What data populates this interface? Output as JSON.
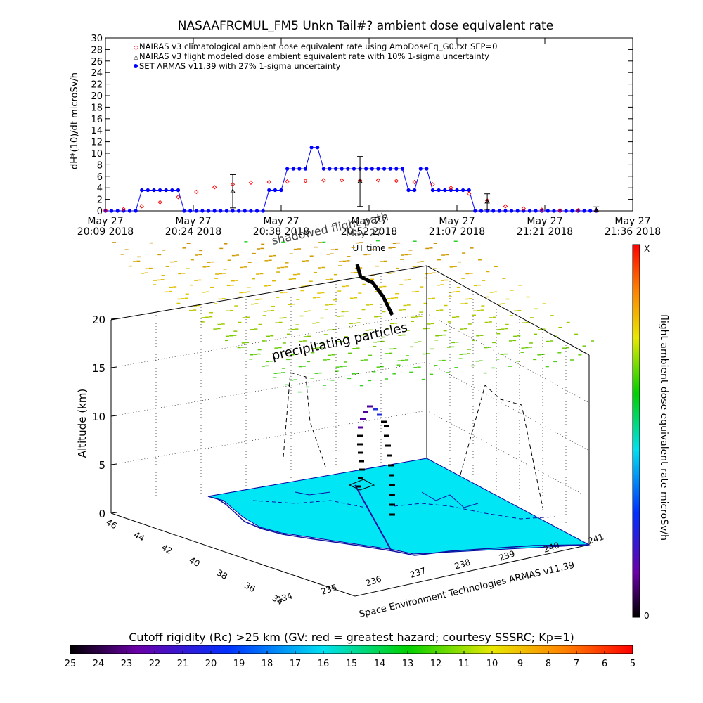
{
  "chart_data": [
    {
      "type": "line",
      "title": "NASAAFRCMUL_FM5 Unkn Tail#? ambient dose equivalent rate",
      "ylabel": "dH*(10)/dt microSv/h",
      "xlabel": "UT time",
      "ylim": [
        0,
        30
      ],
      "yticks": [
        "0",
        "2",
        "4",
        "6",
        "8",
        "10",
        "12",
        "14",
        "16",
        "18",
        "20",
        "22",
        "24",
        "26",
        "28",
        "30"
      ],
      "xticks": [
        {
          "top": "May 27",
          "bottom": "20:09 2018"
        },
        {
          "top": "May 27",
          "bottom": "20:24 2018"
        },
        {
          "top": "May 27",
          "bottom": "20:38 2018"
        },
        {
          "top": "May 27",
          "bottom": "20:52 2018"
        },
        {
          "top": "May 27",
          "bottom": "21:07 2018"
        },
        {
          "top": "May 27",
          "bottom": "21:21 2018"
        },
        {
          "top": "May 27",
          "bottom": "21:36 2018"
        }
      ],
      "legend_position": "top-left",
      "legend": [
        "NAIRAS v3 climatological ambient dose equivalent rate using AmbDoseEq_G0.txt SEP=0",
        "NAIRAS v3 flight modeled dose ambient equivalent rate with 10% 1-sigma uncertainty",
        "SET ARMAS v11.39 with 27% 1-sigma uncertainty"
      ],
      "series": [
        {
          "name": "SET ARMAS v11.39 with 27% 1-sigma uncertainty",
          "color": "#0000ff",
          "x_minutes_after_2009": [
            0,
            1,
            2,
            3,
            4,
            5,
            6,
            7,
            8,
            9,
            10,
            11,
            12,
            13,
            14,
            15,
            16,
            17,
            18,
            19,
            20,
            21,
            22,
            23,
            24,
            25,
            26,
            27,
            28,
            29,
            30,
            31,
            32,
            33,
            34,
            35,
            36,
            37,
            38,
            39,
            40,
            41,
            42,
            43,
            44,
            45,
            46,
            47,
            48,
            49,
            50,
            51,
            52,
            53,
            54,
            55,
            56,
            57,
            58,
            59,
            60,
            61,
            62,
            63,
            64,
            65,
            66,
            67,
            68,
            69,
            70,
            71,
            72,
            73,
            74,
            75,
            76,
            77,
            78,
            79,
            80,
            81
          ],
          "values": [
            0,
            0,
            0,
            0,
            0,
            0,
            3.6,
            3.6,
            3.6,
            3.6,
            3.6,
            3.6,
            3.6,
            0,
            0,
            0,
            0,
            0,
            0,
            0,
            0,
            0,
            0,
            0,
            0,
            0,
            0,
            3.6,
            3.6,
            3.6,
            7.3,
            7.3,
            7.3,
            7.3,
            11,
            11,
            7.3,
            7.3,
            7.3,
            7.3,
            7.3,
            7.3,
            7.3,
            7.3,
            7.3,
            7.3,
            7.3,
            7.3,
            7.3,
            7.3,
            3.6,
            3.6,
            7.3,
            7.3,
            3.6,
            3.6,
            3.6,
            3.6,
            3.6,
            3.6,
            3.6,
            0,
            0,
            0,
            0,
            0,
            0,
            0,
            0,
            0,
            0,
            0,
            0,
            0,
            0,
            0,
            0,
            0,
            0,
            0,
            0,
            0
          ]
        },
        {
          "name": "NAIRAS v3 climatological ambient dose equivalent rate using AmbDoseEq_G0.txt SEP=0",
          "color": "#ff0000",
          "x_minutes_after_2009": [
            0,
            3,
            6,
            9,
            12,
            15,
            18,
            21,
            24,
            27,
            30,
            33,
            36,
            39,
            42,
            45,
            48,
            51,
            54,
            57,
            60,
            63,
            66,
            69,
            72,
            75,
            78,
            81
          ],
          "values": [
            0.1,
            0.3,
            0.8,
            1.5,
            2.4,
            3.3,
            4.1,
            4.6,
            4.9,
            5.0,
            5.1,
            5.2,
            5.3,
            5.3,
            5.3,
            5.3,
            5.2,
            5.0,
            4.6,
            4.0,
            3.0,
            1.8,
            0.8,
            0.4,
            0.2,
            0.1,
            0.1,
            0.1
          ]
        },
        {
          "name": "NAIRAS v3 flight modeled dose ambient equivalent rate with 10% 1-sigma uncertainty",
          "color": "#000000",
          "points": [
            {
              "x_minutes_after_2009": 21,
              "y": 3.4
            },
            {
              "x_minutes_after_2009": 42,
              "y": 5.1
            },
            {
              "x_minutes_after_2009": 63,
              "y": 1.6
            },
            {
              "x_minutes_after_2009": 81,
              "y": 0.1
            }
          ]
        }
      ]
    },
    {
      "type": "scatter",
      "subtype": "3d flight path",
      "zlabel": "Altitude (km)",
      "zticks": [
        "0",
        "5",
        "10",
        "15",
        "20"
      ],
      "lat_ticks": [
        "34",
        "36",
        "38",
        "40",
        "42",
        "44",
        "46"
      ],
      "lon_ticks": [
        "234",
        "235",
        "236",
        "237",
        "238",
        "239",
        "240",
        "241"
      ],
      "annotations": [
        "shadowed flight path",
        "precipitating particles",
        "Space Environment Technologies ARMAS v11.39",
        "May 27"
      ],
      "side_colorbar": {
        "label": "flight ambient dose equivalent rate microSv/h",
        "min_label": "0",
        "max_label": "X"
      },
      "bottom_colorbar": {
        "label": "Cutoff rigidity (Rc) >25 km (GV: red = greatest hazard; courtesy SSSRC; Kp=1)",
        "ticks": [
          "25",
          "24",
          "23",
          "22",
          "21",
          "20",
          "19",
          "18",
          "17",
          "16",
          "15",
          "14",
          "13",
          "12",
          "11",
          "10",
          "9",
          "8",
          "7",
          "6",
          "5"
        ]
      }
    }
  ]
}
